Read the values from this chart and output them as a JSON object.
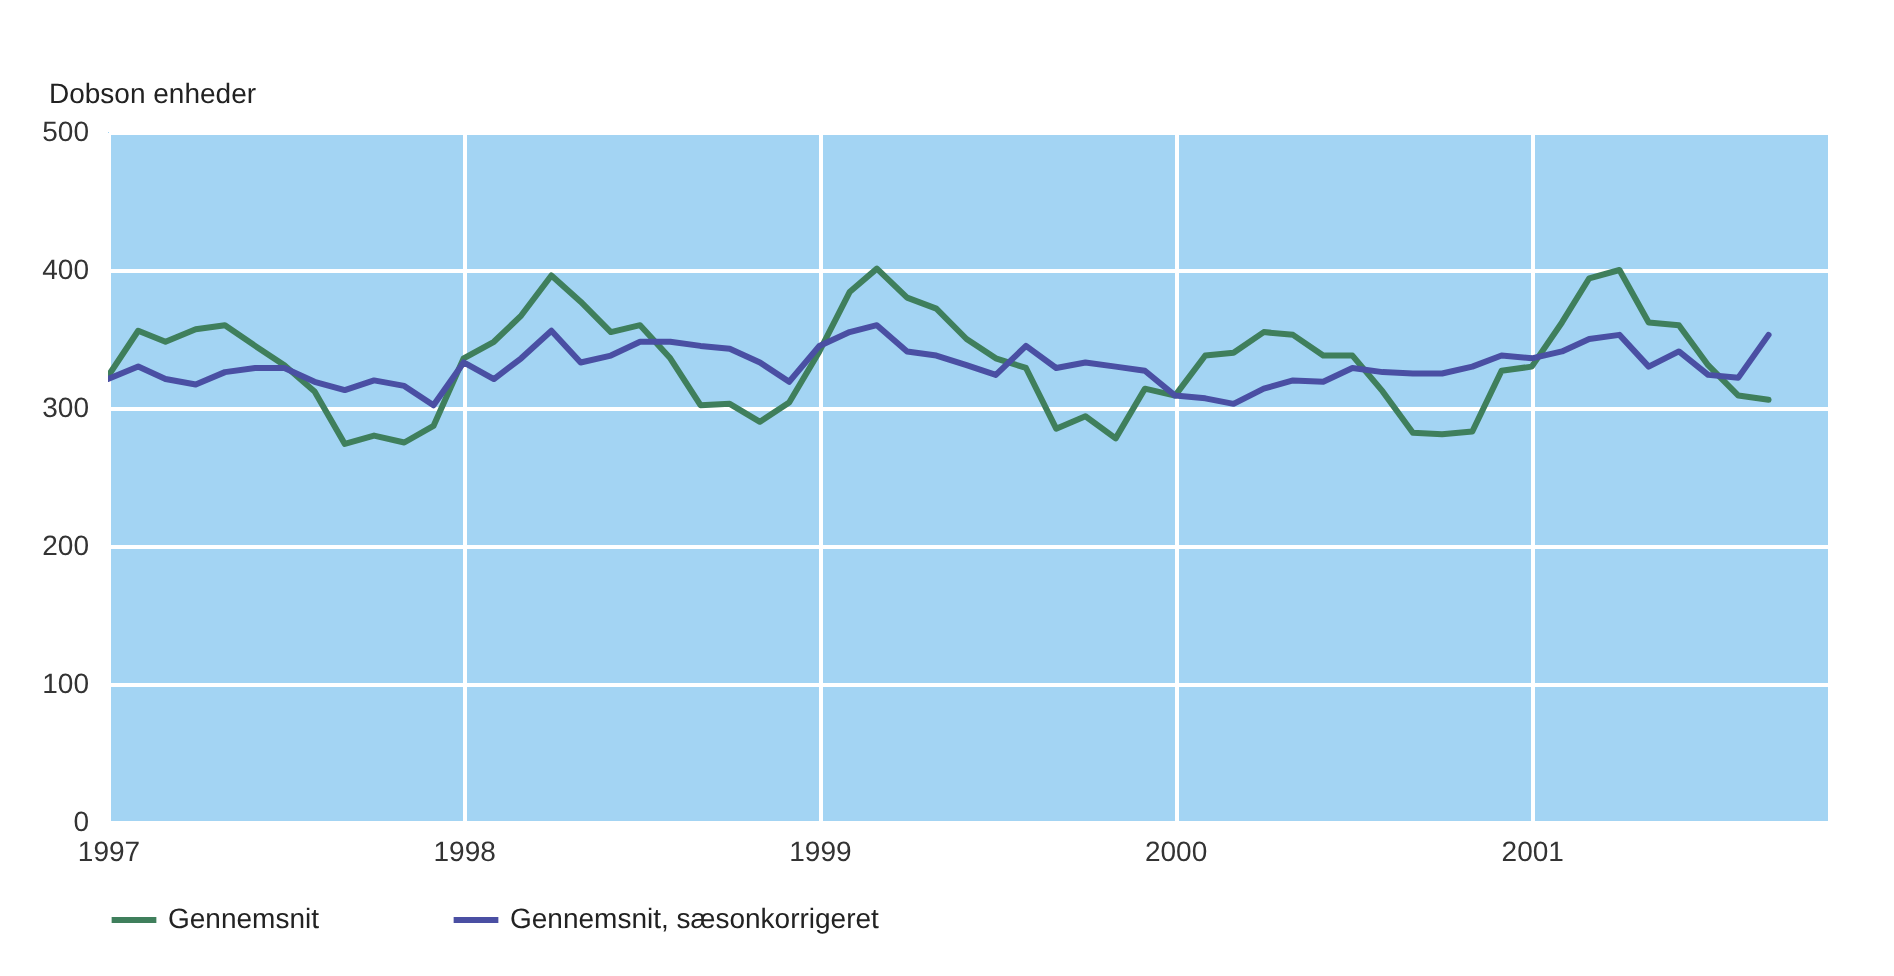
{
  "chart_data": {
    "type": "line",
    "ylabel": "Dobson enheder",
    "x": [
      "1997-01",
      "1997-02",
      "1997-03",
      "1997-04",
      "1997-05",
      "1997-06",
      "1997-07",
      "1997-08",
      "1997-09",
      "1997-10",
      "1997-11",
      "1997-12",
      "1998-01",
      "1998-02",
      "1998-03",
      "1998-04",
      "1998-05",
      "1998-06",
      "1998-07",
      "1998-08",
      "1998-09",
      "1998-10",
      "1998-11",
      "1998-12",
      "1999-01",
      "1999-02",
      "1999-03",
      "1999-04",
      "1999-05",
      "1999-06",
      "1999-07",
      "1999-08",
      "1999-09",
      "1999-10",
      "1999-11",
      "1999-12",
      "2000-01",
      "2000-02",
      "2000-03",
      "2000-04",
      "2000-05",
      "2000-06",
      "2000-07",
      "2000-08",
      "2000-09",
      "2000-10",
      "2000-11",
      "2000-12",
      "2001-01",
      "2001-02",
      "2001-03",
      "2001-04",
      "2001-05",
      "2001-06",
      "2001-07",
      "2001-08",
      "2001-09"
    ],
    "series": [
      {
        "name": "Gennemsnit",
        "color": "#3f7f5c",
        "values": [
          323,
          356,
          348,
          357,
          360,
          345,
          331,
          312,
          274,
          280,
          275,
          287,
          336,
          348,
          367,
          396,
          377,
          355,
          360,
          336,
          302,
          303,
          290,
          304,
          341,
          384,
          401,
          380,
          372,
          350,
          336,
          329,
          285,
          294,
          278,
          314,
          309,
          338,
          340,
          355,
          353,
          338,
          338,
          312,
          282,
          281,
          283,
          327,
          330,
          362,
          394,
          400,
          362,
          360,
          331,
          309,
          306
        ]
      },
      {
        "name": "Gennemsnit, sæsonkorrigeret",
        "color": "#4a4fa3",
        "values": [
          321,
          330,
          321,
          317,
          326,
          329,
          329,
          319,
          313,
          320,
          316,
          302,
          333,
          321,
          336,
          356,
          333,
          338,
          348,
          348,
          345,
          343,
          333,
          319,
          345,
          355,
          360,
          341,
          338,
          331,
          324,
          345,
          329,
          333,
          330,
          327,
          309,
          307,
          303,
          314,
          320,
          319,
          329,
          326,
          325,
          325,
          330,
          338,
          336,
          341,
          350,
          353,
          330,
          341,
          324,
          322,
          353
        ]
      }
    ],
    "xlim": [
      "1997-01",
      "2001-11"
    ],
    "xticks": [
      {
        "value": "1997-01",
        "label": "1997"
      },
      {
        "value": "1998-01",
        "label": "1998"
      },
      {
        "value": "1999-01",
        "label": "1999"
      },
      {
        "value": "2000-01",
        "label": "2000"
      },
      {
        "value": "2001-01",
        "label": "2001"
      }
    ],
    "ylim": [
      0,
      500
    ],
    "yticks": [
      0,
      100,
      200,
      300,
      400,
      500
    ],
    "grid": true,
    "legend": "bottom",
    "marker": "none",
    "line_style": "solid"
  }
}
